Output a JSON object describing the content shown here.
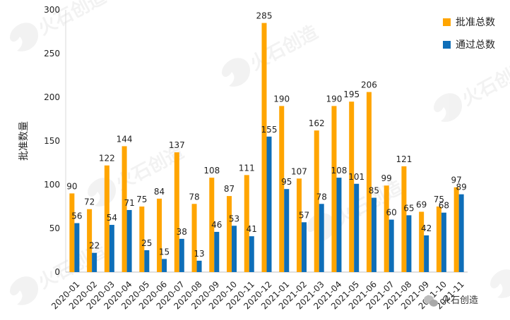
{
  "chart_data": {
    "type": "bar",
    "ylabel": "批准数量",
    "ylim": [
      0,
      300
    ],
    "yticks": [
      0,
      50,
      100,
      150,
      200,
      250,
      300
    ],
    "grid": false,
    "legend_position": "top-right",
    "categories": [
      "2020-01",
      "2020-02",
      "2020-03",
      "2020-04",
      "2020-05",
      "2020-06",
      "2020-07",
      "2020-08",
      "2020-09",
      "2020-10",
      "2020-11",
      "2020-12",
      "2021-01",
      "2021-02",
      "2021-03",
      "2021-04",
      "2021-05",
      "2021-06",
      "2021-07",
      "2021-08",
      "2021-09",
      "2021-10",
      "2021-11"
    ],
    "series": [
      {
        "name": "批准总数",
        "color": "#FFA500",
        "values": [
          90,
          72,
          122,
          144,
          75,
          84,
          137,
          78,
          108,
          87,
          111,
          285,
          190,
          107,
          162,
          190,
          195,
          206,
          99,
          121,
          69,
          75,
          97
        ]
      },
      {
        "name": "通过总数",
        "color": "#0E6EB8",
        "values": [
          56,
          22,
          54,
          71,
          25,
          15,
          38,
          13,
          46,
          53,
          41,
          155,
          95,
          57,
          78,
          108,
          101,
          85,
          60,
          65,
          42,
          68,
          89
        ]
      }
    ]
  },
  "watermark": {
    "text": "火石创造",
    "corner_text": "火石创造",
    "corner_icon": "wechat-icon"
  }
}
